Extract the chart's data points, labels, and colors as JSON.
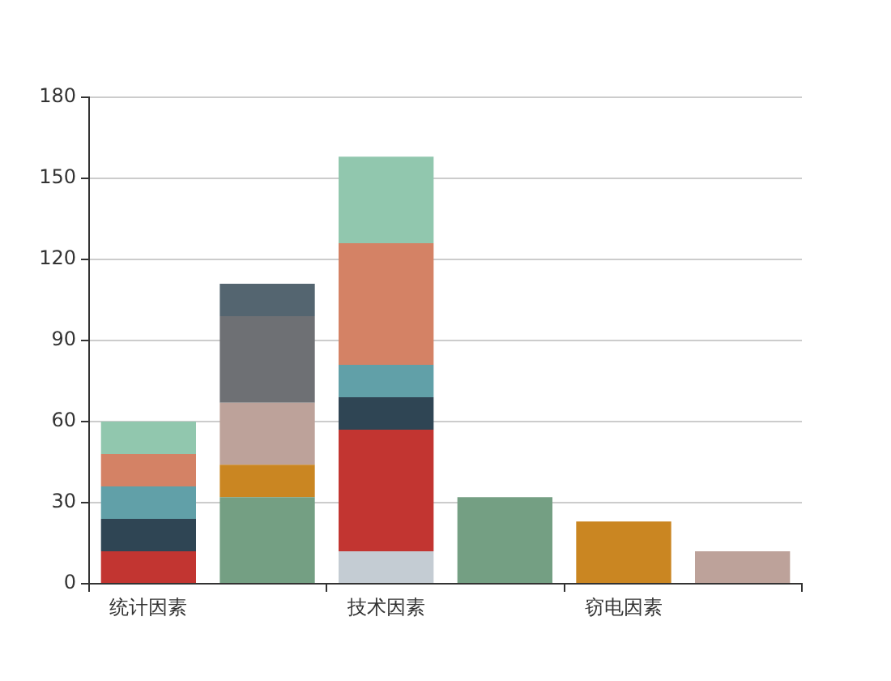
{
  "chart_data": {
    "type": "bar",
    "stacked": true,
    "grid": "y",
    "legend": false,
    "categories": [
      "统计因素",
      null,
      "技术因素",
      null,
      "窃电因素",
      null
    ],
    "ylim": [
      0,
      180
    ],
    "yticks": [
      0,
      30,
      60,
      90,
      120,
      150,
      180
    ],
    "series": [
      {
        "color": "#c4ccd3",
        "values": [
          null,
          null,
          12,
          null,
          null,
          null
        ]
      },
      {
        "color": "#c23531",
        "values": [
          12,
          null,
          45,
          null,
          null,
          null
        ]
      },
      {
        "color": "#2f4554",
        "values": [
          12,
          null,
          12,
          null,
          null,
          null
        ]
      },
      {
        "color": "#61a0a8",
        "values": [
          12,
          null,
          12,
          null,
          null,
          null
        ]
      },
      {
        "color": "#d48265",
        "values": [
          12,
          null,
          45,
          null,
          null,
          null
        ]
      },
      {
        "color": "#91c7ae",
        "values": [
          12,
          null,
          32,
          null,
          null,
          null
        ]
      },
      {
        "color": "#749f83",
        "values": [
          null,
          32,
          null,
          32,
          null,
          null
        ]
      },
      {
        "color": "#ca8622",
        "values": [
          null,
          12,
          null,
          null,
          23,
          null
        ]
      },
      {
        "color": "#bda29a",
        "values": [
          null,
          23,
          null,
          null,
          null,
          12
        ]
      },
      {
        "color": "#6e7074",
        "values": [
          null,
          32,
          null,
          null,
          null,
          null
        ]
      },
      {
        "color": "#546570",
        "values": [
          null,
          12,
          null,
          null,
          null,
          null
        ]
      }
    ]
  }
}
